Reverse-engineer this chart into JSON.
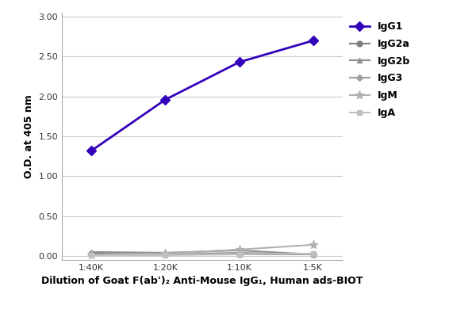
{
  "title": "",
  "xlabel": "Dilution of Goat F(ab')₂ Anti-Mouse IgG₁, Human ads-BIOT",
  "ylabel": "O.D. at 405 nm",
  "x_positions": [
    0,
    1,
    2,
    3
  ],
  "x_labels": [
    "1:40K",
    "1:20K",
    "1:10K",
    "1:5K"
  ],
  "ylim": [
    -0.05,
    3.05
  ],
  "yticks": [
    0.0,
    0.5,
    1.0,
    1.5,
    2.0,
    2.5,
    3.0
  ],
  "series": [
    {
      "label": "IgG1",
      "color": "#3300bb",
      "linewidth": 2.0,
      "marker": "D",
      "markersize": 6,
      "values": [
        1.32,
        1.96,
        2.43,
        2.7
      ]
    },
    {
      "label": "IgG2a",
      "color": "#808080",
      "linewidth": 1.5,
      "marker": "o",
      "markersize": 5,
      "values": [
        0.03,
        0.02,
        0.02,
        0.02
      ]
    },
    {
      "label": "IgG2b",
      "color": "#909090",
      "linewidth": 1.5,
      "marker": "^",
      "markersize": 5,
      "values": [
        0.05,
        0.04,
        0.07,
        0.02
      ]
    },
    {
      "label": "IgG3",
      "color": "#a0a0a0",
      "linewidth": 1.5,
      "marker": "D",
      "markersize": 4,
      "values": [
        0.02,
        0.02,
        0.04,
        0.02
      ]
    },
    {
      "label": "IgM",
      "color": "#b0b0b0",
      "linewidth": 1.5,
      "marker": "*",
      "markersize": 8,
      "values": [
        0.01,
        0.03,
        0.08,
        0.14
      ]
    },
    {
      "label": "IgA",
      "color": "#c0c0c0",
      "linewidth": 1.5,
      "marker": "s",
      "markersize": 5,
      "values": [
        0.01,
        0.01,
        0.02,
        0.03
      ]
    }
  ],
  "background_color": "#ffffff",
  "grid_color": "#cccccc",
  "legend_fontsize": 9,
  "axis_label_fontsize": 9,
  "tick_fontsize": 8,
  "xlabel_fontsize": 9
}
